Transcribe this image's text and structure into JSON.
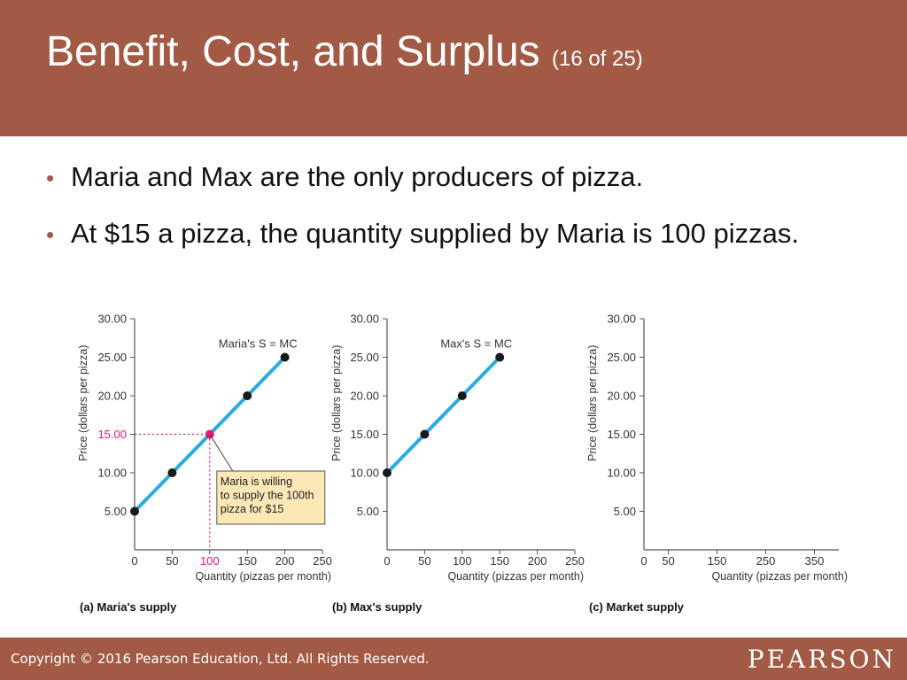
{
  "header": {
    "title": "Benefit, Cost, and Surplus",
    "counter": "(16 of 25)"
  },
  "bullets": [
    "Maria and Max are the only producers of pizza.",
    "At $15 a pizza, the quantity supplied by Maria is 100 pizzas."
  ],
  "footer": {
    "copyright": "Copyright © 2016 Pearson Education, Ltd. All Rights Reserved.",
    "logo": "PEARSON"
  },
  "colors": {
    "brand": "#a25a45",
    "curve": "#29abe2",
    "highlight": "#e5177b",
    "callout_fill": "#fbe8b6",
    "point": "#1a1a1a"
  },
  "chart_data": [
    {
      "type": "line",
      "panel": "a",
      "title": "(a) Maria's supply",
      "xlabel": "Quantity (pizzas per month)",
      "ylabel": "Price (dollars per pizza)",
      "xlim": [
        0,
        250
      ],
      "ylim": [
        0,
        30
      ],
      "xticks": [
        0,
        50,
        100,
        150,
        200,
        250
      ],
      "xtick_labels": [
        "0",
        "50",
        "100",
        "150",
        "200",
        "250"
      ],
      "yticks": [
        5,
        10,
        15,
        20,
        25,
        30
      ],
      "ytick_labels": [
        "5.00",
        "10.00",
        "15.00",
        "20.00",
        "25.00",
        "30.00"
      ],
      "series": [
        {
          "name": "Maria's S = MC",
          "x": [
            0,
            50,
            100,
            150,
            200
          ],
          "y": [
            5,
            10,
            15,
            20,
            25
          ]
        }
      ],
      "highlight": {
        "x": 100,
        "y": 15
      },
      "annotation": [
        "Maria is willing",
        "to supply the 100th",
        "pizza for $15"
      ]
    },
    {
      "type": "line",
      "panel": "b",
      "title": "(b) Max's supply",
      "xlabel": "Quantity (pizzas per month)",
      "ylabel": "Price (dollars per pizza)",
      "xlim": [
        0,
        250
      ],
      "ylim": [
        0,
        30
      ],
      "xticks": [
        0,
        50,
        100,
        150,
        200,
        250
      ],
      "xtick_labels": [
        "0",
        "50",
        "100",
        "150",
        "200",
        "250"
      ],
      "yticks": [
        5,
        10,
        15,
        20,
        25,
        30
      ],
      "ytick_labels": [
        "5.00",
        "10.00",
        "15.00",
        "20.00",
        "25.00",
        "30.00"
      ],
      "series": [
        {
          "name": "Max's S = MC",
          "x": [
            0,
            50,
            100,
            150
          ],
          "y": [
            10,
            15,
            20,
            25
          ]
        }
      ]
    },
    {
      "type": "line",
      "panel": "c",
      "title": "(c) Market supply",
      "xlabel": "Quantity (pizzas per month)",
      "ylabel": "Price (dollars per pizza)",
      "xlim": [
        0,
        400
      ],
      "ylim": [
        0,
        30
      ],
      "xticks": [
        0,
        50,
        150,
        250,
        350
      ],
      "xtick_labels": [
        "0",
        "50",
        "150",
        "250",
        "350"
      ],
      "yticks": [
        5,
        10,
        15,
        20,
        25,
        30
      ],
      "ytick_labels": [
        "5.00",
        "10.00",
        "15.00",
        "20.00",
        "25.00",
        "30.00"
      ],
      "series": []
    }
  ]
}
